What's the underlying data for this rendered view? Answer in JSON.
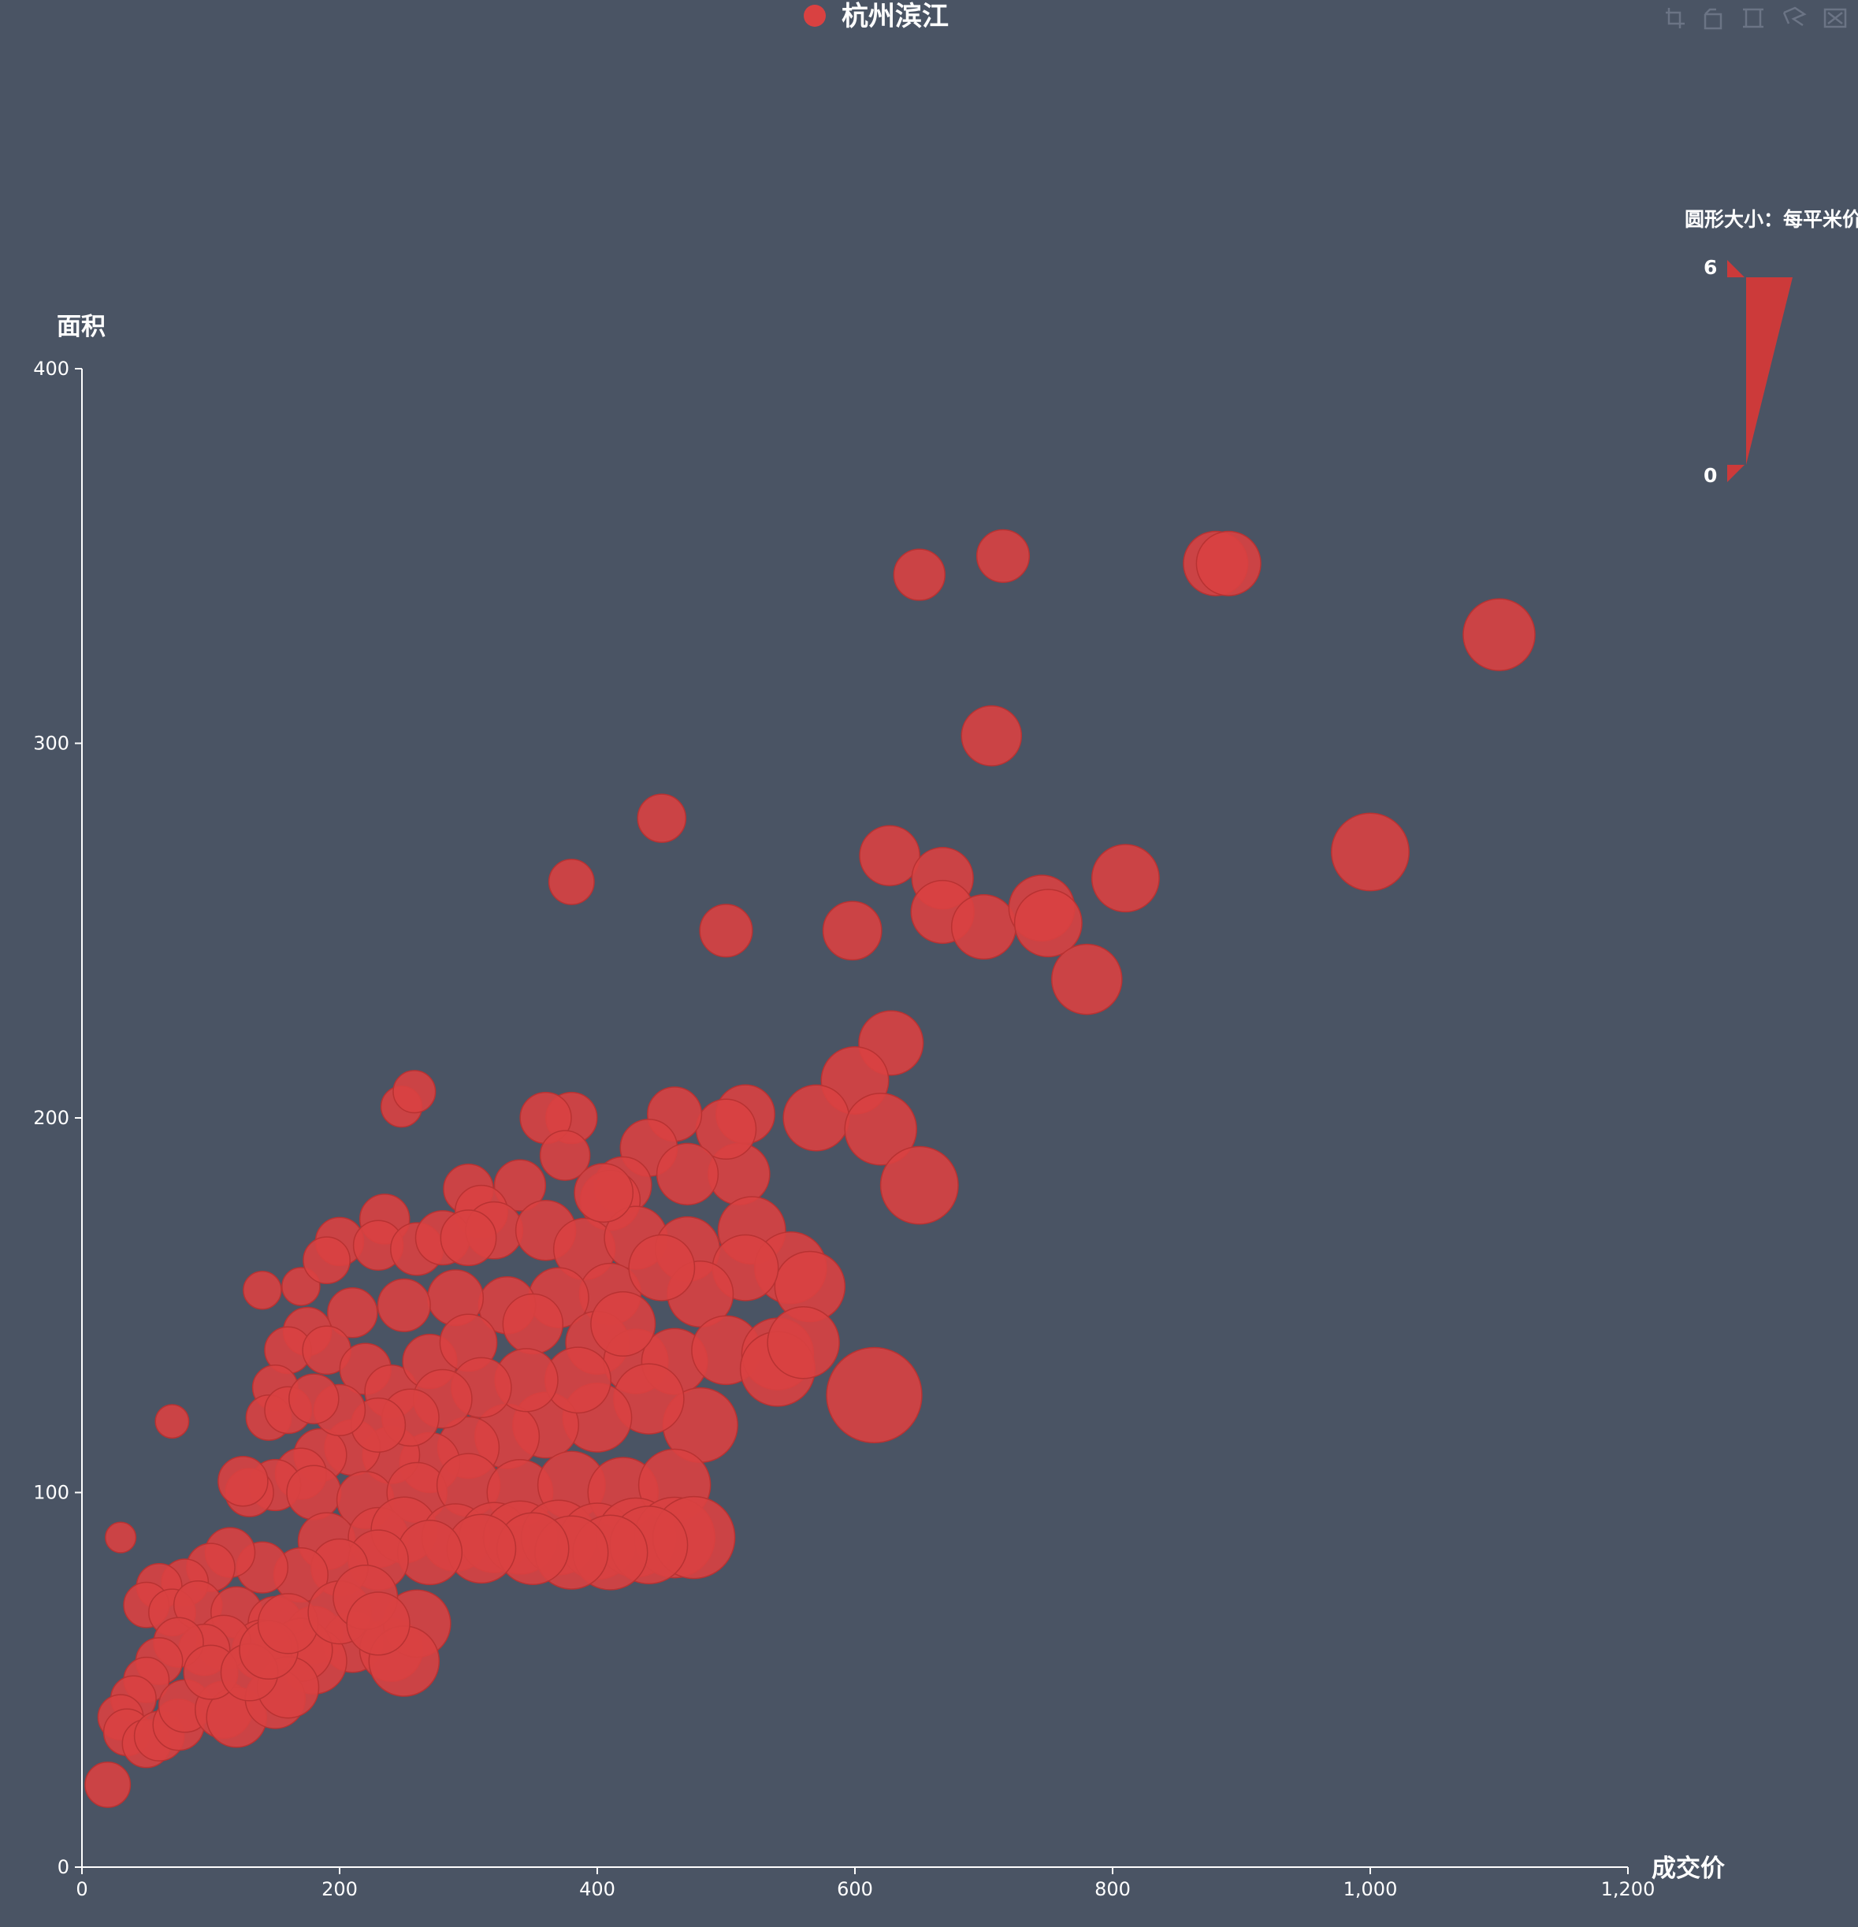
{
  "toolbox": {
    "icons": [
      "zoom-icon",
      "zoom-reset-icon",
      "brush-rect-icon",
      "brush-lasso-icon",
      "brush-clear-icon"
    ]
  },
  "colors": {
    "background": "#4a5464",
    "bubble": "#d94141",
    "bubble_stroke": "#b83232",
    "axis": "#ffffff"
  },
  "visual_map": {
    "title": "圆形大小：每平米价",
    "max_label": "6",
    "min_label": "0",
    "max": 6,
    "min": 0,
    "color": "#cc3a3a"
  },
  "chart_data": {
    "type": "scatter",
    "title": "",
    "legend": [
      "杭州滨江"
    ],
    "legend_position": "top-center",
    "xlabel": "成交价",
    "ylabel": "面积",
    "xlim": [
      0,
      1200
    ],
    "ylim": [
      0,
      400
    ],
    "xticks": [
      "0",
      "200",
      "400",
      "600",
      "800",
      "1,000",
      "1,200"
    ],
    "yticks": [
      "0",
      "100",
      "200",
      "300",
      "400"
    ],
    "grid": false,
    "series": [
      {
        "name": "杭州滨江",
        "comment": "points are [成交价, 面积, 每平米价]",
        "points": [
          [
            20,
            22,
            2.0
          ],
          [
            30,
            88,
            1.0
          ],
          [
            70,
            119,
            1.2
          ],
          [
            140,
            154,
            1.5
          ],
          [
            170,
            155,
            1.5
          ],
          [
            248,
            203,
            1.7
          ],
          [
            258,
            207,
            1.8
          ],
          [
            380,
            263,
            2.0
          ],
          [
            450,
            280,
            2.2
          ],
          [
            500,
            250,
            2.5
          ],
          [
            598,
            250,
            2.9
          ],
          [
            627,
            270,
            3.0
          ],
          [
            650,
            345,
            2.4
          ],
          [
            715,
            350,
            2.5
          ],
          [
            706,
            302,
            3.0
          ],
          [
            668,
            264,
            3.1
          ],
          [
            668,
            255,
            3.2
          ],
          [
            700,
            251,
            3.3
          ],
          [
            745,
            256,
            3.4
          ],
          [
            750,
            252,
            3.5
          ],
          [
            810,
            264,
            3.5
          ],
          [
            780,
            237,
            3.7
          ],
          [
            880,
            348,
            3.3
          ],
          [
            890,
            348,
            3.3
          ],
          [
            1000,
            271,
            4.2
          ],
          [
            1100,
            329,
            3.8
          ],
          [
            628,
            220,
            3.3
          ],
          [
            600,
            210,
            3.5
          ],
          [
            570,
            200,
            3.4
          ],
          [
            620,
            197,
            3.8
          ],
          [
            650,
            182,
            4.2
          ],
          [
            615,
            126,
            5.4
          ],
          [
            515,
            201,
            2.9
          ],
          [
            510,
            185,
            3.1
          ],
          [
            500,
            197,
            3.0
          ],
          [
            460,
            201,
            2.6
          ],
          [
            440,
            192,
            2.8
          ],
          [
            380,
            200,
            2.4
          ],
          [
            360,
            200,
            2.4
          ],
          [
            375,
            190,
            2.3
          ],
          [
            420,
            182,
            2.8
          ],
          [
            410,
            178,
            3.0
          ],
          [
            470,
            185,
            3.1
          ],
          [
            340,
            182,
            2.4
          ],
          [
            300,
            181,
            2.3
          ],
          [
            310,
            175,
            2.5
          ],
          [
            235,
            173,
            2.3
          ],
          [
            200,
            167,
            2.2
          ],
          [
            230,
            166,
            2.3
          ],
          [
            190,
            162,
            2.1
          ],
          [
            260,
            165,
            2.5
          ],
          [
            280,
            168,
            2.6
          ],
          [
            320,
            170,
            2.8
          ],
          [
            360,
            170,
            3.0
          ],
          [
            390,
            165,
            3.1
          ],
          [
            430,
            168,
            3.2
          ],
          [
            470,
            165,
            3.3
          ],
          [
            520,
            170,
            3.5
          ],
          [
            550,
            160,
            3.8
          ],
          [
            565,
            155,
            3.7
          ],
          [
            515,
            160,
            3.4
          ],
          [
            480,
            153,
            3.4
          ],
          [
            410,
            153,
            3.1
          ],
          [
            370,
            152,
            3.0
          ],
          [
            330,
            150,
            2.8
          ],
          [
            290,
            152,
            2.7
          ],
          [
            250,
            150,
            2.5
          ],
          [
            210,
            148,
            2.3
          ],
          [
            175,
            143,
            2.2
          ],
          [
            160,
            138,
            2.1
          ],
          [
            150,
            128,
            2.0
          ],
          [
            145,
            120,
            2.0
          ],
          [
            160,
            122,
            2.1
          ],
          [
            190,
            138,
            2.2
          ],
          [
            220,
            133,
            2.4
          ],
          [
            240,
            127,
            2.5
          ],
          [
            270,
            135,
            2.6
          ],
          [
            300,
            140,
            2.8
          ],
          [
            350,
            145,
            3.0
          ],
          [
            400,
            140,
            3.2
          ],
          [
            430,
            135,
            3.3
          ],
          [
            460,
            135,
            3.4
          ],
          [
            500,
            138,
            3.6
          ],
          [
            540,
            137,
            3.8
          ],
          [
            540,
            133,
            4.0
          ],
          [
            560,
            140,
            3.8
          ],
          [
            480,
            118,
            4.0
          ],
          [
            440,
            125,
            3.7
          ],
          [
            400,
            120,
            3.6
          ],
          [
            360,
            118,
            3.4
          ],
          [
            330,
            115,
            3.3
          ],
          [
            300,
            112,
            3.1
          ],
          [
            270,
            108,
            3.0
          ],
          [
            240,
            110,
            2.8
          ],
          [
            210,
            112,
            2.7
          ],
          [
            185,
            110,
            2.5
          ],
          [
            170,
            105,
            2.4
          ],
          [
            150,
            102,
            2.4
          ],
          [
            130,
            100,
            2.2
          ],
          [
            125,
            103,
            2.3
          ],
          [
            180,
            100,
            2.6
          ],
          [
            220,
            98,
            2.8
          ],
          [
            260,
            100,
            3.0
          ],
          [
            300,
            102,
            3.2
          ],
          [
            340,
            100,
            3.4
          ],
          [
            380,
            102,
            3.5
          ],
          [
            420,
            100,
            3.7
          ],
          [
            460,
            102,
            3.8
          ],
          [
            190,
            87,
            2.8
          ],
          [
            230,
            88,
            3.0
          ],
          [
            250,
            90,
            3.4
          ],
          [
            290,
            88,
            3.5
          ],
          [
            320,
            88,
            3.7
          ],
          [
            340,
            88,
            3.9
          ],
          [
            370,
            88,
            4.0
          ],
          [
            400,
            87,
            4.1
          ],
          [
            430,
            88,
            4.3
          ],
          [
            460,
            88,
            4.4
          ],
          [
            475,
            88,
            4.5
          ],
          [
            440,
            86,
            4.2
          ],
          [
            410,
            84,
            4.0
          ],
          [
            380,
            84,
            3.9
          ],
          [
            350,
            85,
            3.8
          ],
          [
            310,
            85,
            3.6
          ],
          [
            270,
            84,
            3.3
          ],
          [
            230,
            82,
            3.0
          ],
          [
            200,
            80,
            2.8
          ],
          [
            170,
            78,
            2.6
          ],
          [
            140,
            80,
            2.4
          ],
          [
            115,
            84,
            2.3
          ],
          [
            100,
            80,
            2.2
          ],
          [
            80,
            76,
            2.1
          ],
          [
            60,
            75,
            2.0
          ],
          [
            50,
            70,
            2.0
          ],
          [
            70,
            68,
            2.1
          ],
          [
            90,
            70,
            2.2
          ],
          [
            120,
            68,
            2.4
          ],
          [
            150,
            65,
            2.6
          ],
          [
            180,
            62,
            2.8
          ],
          [
            210,
            60,
            3.0
          ],
          [
            240,
            58,
            3.2
          ],
          [
            260,
            65,
            3.5
          ],
          [
            250,
            55,
            3.7
          ],
          [
            180,
            55,
            3.4
          ],
          [
            170,
            58,
            3.2
          ],
          [
            140,
            58,
            3.0
          ],
          [
            110,
            60,
            2.6
          ],
          [
            95,
            58,
            2.4
          ],
          [
            75,
            60,
            2.3
          ],
          [
            60,
            55,
            2.1
          ],
          [
            50,
            50,
            2.0
          ],
          [
            40,
            45,
            2.0
          ],
          [
            30,
            40,
            2.0
          ],
          [
            35,
            36,
            2.1
          ],
          [
            50,
            33,
            2.2
          ],
          [
            60,
            35,
            2.3
          ],
          [
            75,
            38,
            2.4
          ],
          [
            80,
            43,
            2.5
          ],
          [
            110,
            42,
            2.8
          ],
          [
            120,
            40,
            3.0
          ],
          [
            150,
            45,
            3.0
          ],
          [
            160,
            48,
            3.1
          ],
          [
            100,
            52,
            2.6
          ],
          [
            130,
            52,
            2.8
          ],
          [
            145,
            58,
            2.9
          ],
          [
            160,
            65,
            3.0
          ],
          [
            200,
            68,
            3.2
          ],
          [
            220,
            72,
            3.3
          ],
          [
            230,
            65,
            3.2
          ],
          [
            300,
            168,
            2.7
          ],
          [
            405,
            180,
            2.9
          ],
          [
            450,
            160,
            3.4
          ],
          [
            420,
            145,
            3.3
          ],
          [
            385,
            130,
            3.4
          ],
          [
            345,
            130,
            3.2
          ],
          [
            310,
            128,
            3.0
          ],
          [
            280,
            125,
            2.9
          ],
          [
            255,
            120,
            2.8
          ],
          [
            230,
            118,
            2.6
          ],
          [
            200,
            122,
            2.4
          ],
          [
            180,
            125,
            2.3
          ]
        ]
      }
    ]
  }
}
